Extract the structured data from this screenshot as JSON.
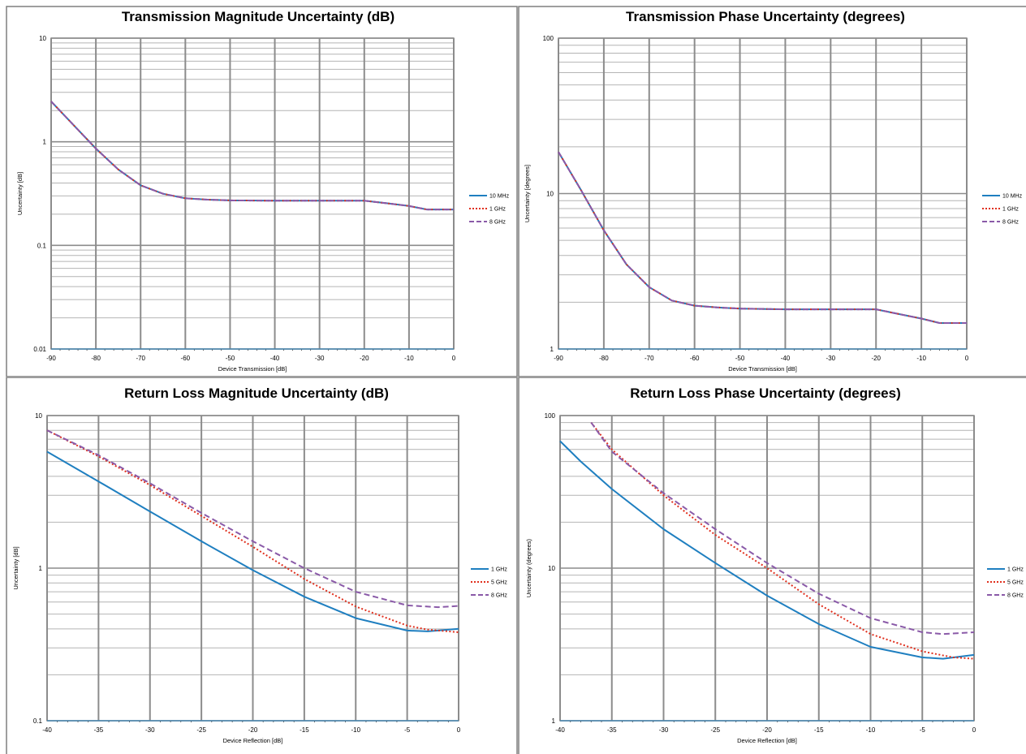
{
  "chart_data": [
    {
      "type": "line",
      "title": "Transmission Magnitude Uncertainty (dB)",
      "xlabel": "Device Transmission [dB]",
      "ylabel": "Uncertainty [dB]",
      "yscale": "log",
      "xlim": [
        -90,
        0
      ],
      "ylim": [
        0.01,
        10
      ],
      "x_ticks": [
        "-90",
        "-80",
        "-70",
        "-60",
        "-50",
        "-40",
        "-30",
        "-20",
        "-10",
        "0"
      ],
      "y_ticks": [
        "0.01",
        "0.1",
        "1",
        "10"
      ],
      "grid": true,
      "legend": "right",
      "series": [
        {
          "name": "10 MHz",
          "color": "#1f7fc0",
          "style": "solid",
          "points": [
            [
              -90,
              2.45
            ],
            [
              -85,
              1.45
            ],
            [
              -80,
              0.86
            ],
            [
              -75,
              0.54
            ],
            [
              -70,
              0.38
            ],
            [
              -65,
              0.315
            ],
            [
              -60,
              0.285
            ],
            [
              -55,
              0.276
            ],
            [
              -50,
              0.272
            ],
            [
              -40,
              0.27
            ],
            [
              -30,
              0.27
            ],
            [
              -20,
              0.27
            ],
            [
              -15,
              0.255
            ],
            [
              -10,
              0.24
            ],
            [
              -6,
              0.222
            ],
            [
              0,
              0.222
            ]
          ]
        },
        {
          "name": "1 GHz",
          "color": "#e0301e",
          "style": "dotted",
          "points": [
            [
              -90,
              2.45
            ],
            [
              -85,
              1.45
            ],
            [
              -80,
              0.86
            ],
            [
              -75,
              0.54
            ],
            [
              -70,
              0.38
            ],
            [
              -65,
              0.315
            ],
            [
              -60,
              0.285
            ],
            [
              -55,
              0.276
            ],
            [
              -50,
              0.272
            ],
            [
              -40,
              0.27
            ],
            [
              -30,
              0.27
            ],
            [
              -20,
              0.27
            ],
            [
              -15,
              0.255
            ],
            [
              -10,
              0.24
            ],
            [
              -6,
              0.222
            ],
            [
              0,
              0.222
            ]
          ]
        },
        {
          "name": "8 GHz",
          "color": "#8a5aa8",
          "style": "dashed",
          "points": [
            [
              -90,
              2.45
            ],
            [
              -85,
              1.45
            ],
            [
              -80,
              0.86
            ],
            [
              -75,
              0.54
            ],
            [
              -70,
              0.38
            ],
            [
              -65,
              0.315
            ],
            [
              -60,
              0.285
            ],
            [
              -55,
              0.276
            ],
            [
              -50,
              0.272
            ],
            [
              -40,
              0.27
            ],
            [
              -30,
              0.27
            ],
            [
              -20,
              0.27
            ],
            [
              -15,
              0.255
            ],
            [
              -10,
              0.24
            ],
            [
              -6,
              0.222
            ],
            [
              0,
              0.222
            ]
          ]
        }
      ]
    },
    {
      "type": "line",
      "title": "Transmission Phase Uncertainty (degrees)",
      "xlabel": "Device Transmission [dB]",
      "ylabel": "Uncertainty [degrees]",
      "yscale": "log",
      "xlim": [
        -90,
        0
      ],
      "ylim": [
        1,
        100
      ],
      "x_ticks": [
        "-90",
        "-80",
        "-70",
        "-60",
        "-50",
        "-40",
        "-30",
        "-20",
        "-10",
        "0"
      ],
      "y_ticks": [
        "1",
        "10",
        "100"
      ],
      "grid": true,
      "legend": "right",
      "series": [
        {
          "name": "10 MHz",
          "color": "#1f7fc0",
          "style": "solid",
          "points": [
            [
              -90,
              18.5
            ],
            [
              -85,
              10.5
            ],
            [
              -80,
              5.8
            ],
            [
              -75,
              3.5
            ],
            [
              -70,
              2.5
            ],
            [
              -65,
              2.05
            ],
            [
              -60,
              1.9
            ],
            [
              -55,
              1.85
            ],
            [
              -50,
              1.82
            ],
            [
              -40,
              1.8
            ],
            [
              -30,
              1.8
            ],
            [
              -20,
              1.8
            ],
            [
              -15,
              1.68
            ],
            [
              -10,
              1.57
            ],
            [
              -6,
              1.47
            ],
            [
              0,
              1.47
            ]
          ]
        },
        {
          "name": "1 GHz",
          "color": "#e0301e",
          "style": "dotted",
          "points": [
            [
              -90,
              18.5
            ],
            [
              -85,
              10.5
            ],
            [
              -80,
              5.8
            ],
            [
              -75,
              3.5
            ],
            [
              -70,
              2.5
            ],
            [
              -65,
              2.05
            ],
            [
              -60,
              1.9
            ],
            [
              -55,
              1.85
            ],
            [
              -50,
              1.82
            ],
            [
              -40,
              1.8
            ],
            [
              -30,
              1.8
            ],
            [
              -20,
              1.8
            ],
            [
              -15,
              1.68
            ],
            [
              -10,
              1.57
            ],
            [
              -6,
              1.47
            ],
            [
              0,
              1.47
            ]
          ]
        },
        {
          "name": "8 GHz",
          "color": "#8a5aa8",
          "style": "dashed",
          "points": [
            [
              -90,
              18.5
            ],
            [
              -85,
              10.5
            ],
            [
              -80,
              5.8
            ],
            [
              -75,
              3.5
            ],
            [
              -70,
              2.5
            ],
            [
              -65,
              2.05
            ],
            [
              -60,
              1.9
            ],
            [
              -55,
              1.85
            ],
            [
              -50,
              1.82
            ],
            [
              -40,
              1.8
            ],
            [
              -30,
              1.8
            ],
            [
              -20,
              1.8
            ],
            [
              -15,
              1.68
            ],
            [
              -10,
              1.57
            ],
            [
              -6,
              1.47
            ],
            [
              0,
              1.47
            ]
          ]
        }
      ]
    },
    {
      "type": "line",
      "title": "Return Loss Magnitude Uncertainty (dB)",
      "xlabel": "Device Reflection [dB]",
      "ylabel": "Uncertainty [dB]",
      "yscale": "log",
      "xlim": [
        -40,
        0
      ],
      "ylim": [
        0.1,
        10
      ],
      "x_ticks": [
        "-40",
        "-35",
        "-30",
        "-25",
        "-20",
        "-15",
        "-10",
        "-5",
        "0"
      ],
      "y_ticks": [
        "0.1",
        "1",
        "10"
      ],
      "grid": true,
      "legend": "right",
      "series": [
        {
          "name": "1 GHz",
          "color": "#1f7fc0",
          "style": "solid",
          "points": [
            [
              -40,
              5.8
            ],
            [
              -35,
              3.7
            ],
            [
              -30,
              2.35
            ],
            [
              -25,
              1.5
            ],
            [
              -20,
              0.97
            ],
            [
              -15,
              0.65
            ],
            [
              -10,
              0.47
            ],
            [
              -5,
              0.39
            ],
            [
              -3,
              0.385
            ],
            [
              0,
              0.4
            ]
          ]
        },
        {
          "name": "5 GHz",
          "color": "#e0301e",
          "style": "dotted",
          "points": [
            [
              -40,
              8.0
            ],
            [
              -35,
              5.4
            ],
            [
              -30,
              3.5
            ],
            [
              -25,
              2.2
            ],
            [
              -20,
              1.38
            ],
            [
              -15,
              0.85
            ],
            [
              -10,
              0.56
            ],
            [
              -5,
              0.42
            ],
            [
              -3,
              0.395
            ],
            [
              0,
              0.38
            ]
          ]
        },
        {
          "name": "8 GHz",
          "color": "#8a5aa8",
          "style": "dashed",
          "points": [
            [
              -40,
              8.0
            ],
            [
              -35,
              5.5
            ],
            [
              -30,
              3.6
            ],
            [
              -25,
              2.3
            ],
            [
              -20,
              1.5
            ],
            [
              -15,
              1.0
            ],
            [
              -10,
              0.7
            ],
            [
              -5,
              0.57
            ],
            [
              -2,
              0.555
            ],
            [
              0,
              0.565
            ]
          ]
        }
      ]
    },
    {
      "type": "line",
      "title": "Return Loss Phase Uncertainty (degrees)",
      "xlabel": "Device Reflection [dB]",
      "ylabel": "Uncertainty (degrees)",
      "yscale": "log",
      "xlim": [
        -40,
        0
      ],
      "ylim": [
        1,
        100
      ],
      "x_ticks": [
        "-40",
        "-35",
        "-30",
        "-25",
        "-20",
        "-15",
        "-10",
        "-5",
        "0"
      ],
      "y_ticks": [
        "1",
        "10",
        "100"
      ],
      "grid": true,
      "legend": "right",
      "series": [
        {
          "name": "1 GHz",
          "color": "#1f7fc0",
          "style": "solid",
          "points": [
            [
              -40,
              68
            ],
            [
              -38,
              50
            ],
            [
              -35,
              33
            ],
            [
              -30,
              18
            ],
            [
              -25,
              10.8
            ],
            [
              -20,
              6.6
            ],
            [
              -15,
              4.3
            ],
            [
              -10,
              3.05
            ],
            [
              -5,
              2.6
            ],
            [
              -3,
              2.55
            ],
            [
              0,
              2.7
            ]
          ]
        },
        {
          "name": "5 GHz",
          "color": "#e0301e",
          "style": "dotted",
          "points": [
            [
              -37,
              90
            ],
            [
              -35,
              60
            ],
            [
              -30,
              30
            ],
            [
              -25,
              16.5
            ],
            [
              -20,
              10
            ],
            [
              -15,
              5.8
            ],
            [
              -10,
              3.7
            ],
            [
              -5,
              2.85
            ],
            [
              -2,
              2.6
            ],
            [
              0,
              2.55
            ]
          ]
        },
        {
          "name": "8 GHz",
          "color": "#8a5aa8",
          "style": "dashed",
          "points": [
            [
              -37,
              90
            ],
            [
              -35,
              58
            ],
            [
              -30,
              31
            ],
            [
              -25,
              18
            ],
            [
              -20,
              10.8
            ],
            [
              -15,
              6.8
            ],
            [
              -10,
              4.7
            ],
            [
              -5,
              3.8
            ],
            [
              -3,
              3.7
            ],
            [
              0,
              3.8
            ]
          ]
        }
      ]
    }
  ]
}
